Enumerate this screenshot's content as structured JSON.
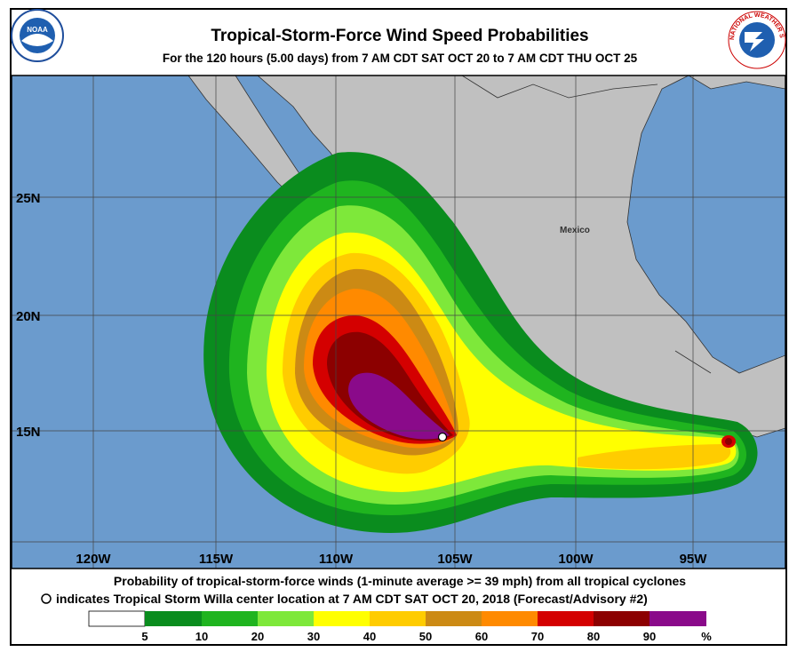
{
  "header": {
    "title": "Tropical-Storm-Force Wind Speed Probabilities",
    "subtitle": "For the 120 hours (5.00 days) from 7 AM CDT SAT OCT 20 to 7 AM CDT THU OCT 25",
    "noaa_logo": "NOAA",
    "nws_logo": "NATIONAL WEATHER SERVICE"
  },
  "map": {
    "place_label": "Mexico",
    "longitude_labels": [
      "120W",
      "115W",
      "110W",
      "105W",
      "100W",
      "95W"
    ],
    "latitude_labels": [
      "25N",
      "20N",
      "15N"
    ]
  },
  "caption": {
    "line1": "Probability of tropical-storm-force winds (1-minute average >= 39 mph) from all tropical cyclones",
    "line2": "indicates Tropical Storm Willa center location at 7 AM CDT SAT OCT 20, 2018 (Forecast/Advisory #2)"
  },
  "legend": {
    "labels": [
      "5",
      "10",
      "20",
      "30",
      "40",
      "50",
      "60",
      "70",
      "80",
      "90",
      "%"
    ]
  }
}
